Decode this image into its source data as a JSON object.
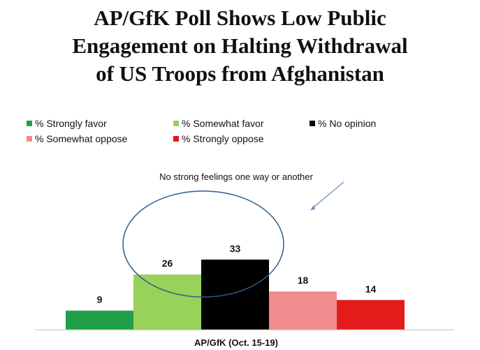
{
  "title": "AP/GfK Poll Shows Low Public\nEngagement on Halting Withdrawal\nof US Troops from Afghanistan",
  "chart_data": {
    "type": "bar",
    "title": "AP/GfK Poll Shows Low Public Engagement on Halting Withdrawal of US Troops from Afghanistan",
    "categories": [
      "AP/GfK (Oct. 15-19)"
    ],
    "xlabel": "AP/GfK (Oct. 15-19)",
    "ylabel": "",
    "ylim": [
      0,
      35
    ],
    "grid": false,
    "legend_position": "top",
    "series": [
      {
        "name": "% Strongly favor",
        "values": [
          9
        ],
        "color": "#1fa048"
      },
      {
        "name": "% Somewhat favor",
        "values": [
          26
        ],
        "color": "#99d25a"
      },
      {
        "name": "% No opinion",
        "values": [
          33
        ],
        "color": "#000000"
      },
      {
        "name": "% Somewhat oppose",
        "values": [
          18
        ],
        "color": "#f28b8d"
      },
      {
        "name": "% Strongly oppose",
        "values": [
          14
        ],
        "color": "#e31b1b"
      }
    ],
    "annotations": [
      {
        "text": "No strong feelings one way or another"
      }
    ]
  }
}
